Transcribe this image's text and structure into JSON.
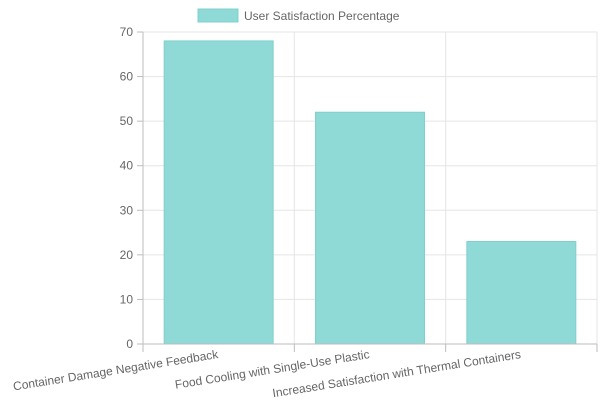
{
  "chart_data": {
    "type": "bar",
    "title": "",
    "xlabel": "",
    "ylabel": "",
    "categories": [
      "Container Damage Negative Feedback",
      "Food Cooling with Single-Use Plastic",
      "Increased Satisfaction with Thermal Containers"
    ],
    "series": [
      {
        "name": "User Satisfaction Percentage",
        "values": [
          68,
          52,
          23
        ]
      }
    ],
    "ylim": [
      0,
      70
    ],
    "yticks": [
      0,
      10,
      20,
      30,
      40,
      50,
      60,
      70
    ],
    "grid": true,
    "legend_position": "top",
    "colors": {
      "bar_fill": "#8fd9d7",
      "bar_stroke": "#7fd0cd",
      "grid": "#e5e5e5",
      "axis": "#bdbdbd",
      "text": "#666666"
    }
  }
}
